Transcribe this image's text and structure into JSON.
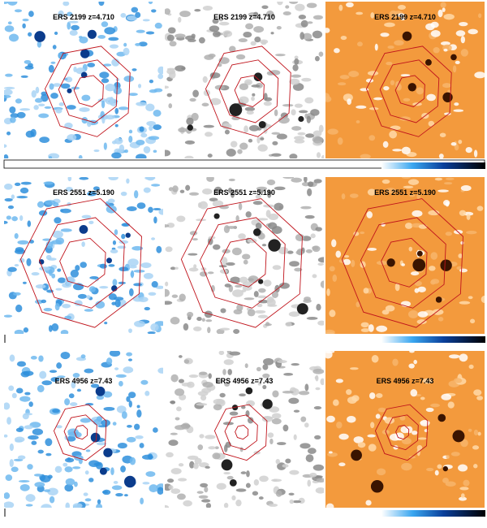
{
  "rows": [
    {
      "panels": [
        {
          "label": "ERS 2199 z=4.710"
        },
        {
          "label": "ERS 2199 z=4.710"
        },
        {
          "label": "ERS 2199 z=4.710"
        }
      ]
    },
    {
      "panels": [
        {
          "label": "ERS 2551 z=5.190"
        },
        {
          "label": "ERS 2551 z=5.190"
        },
        {
          "label": "ERS 2551 z=5.190"
        }
      ]
    },
    {
      "panels": [
        {
          "label": "ERS 4956 z=7.43"
        },
        {
          "label": "ERS 4956 z=7.43"
        },
        {
          "label": "ERS 4956 z=7.43"
        }
      ]
    }
  ]
}
